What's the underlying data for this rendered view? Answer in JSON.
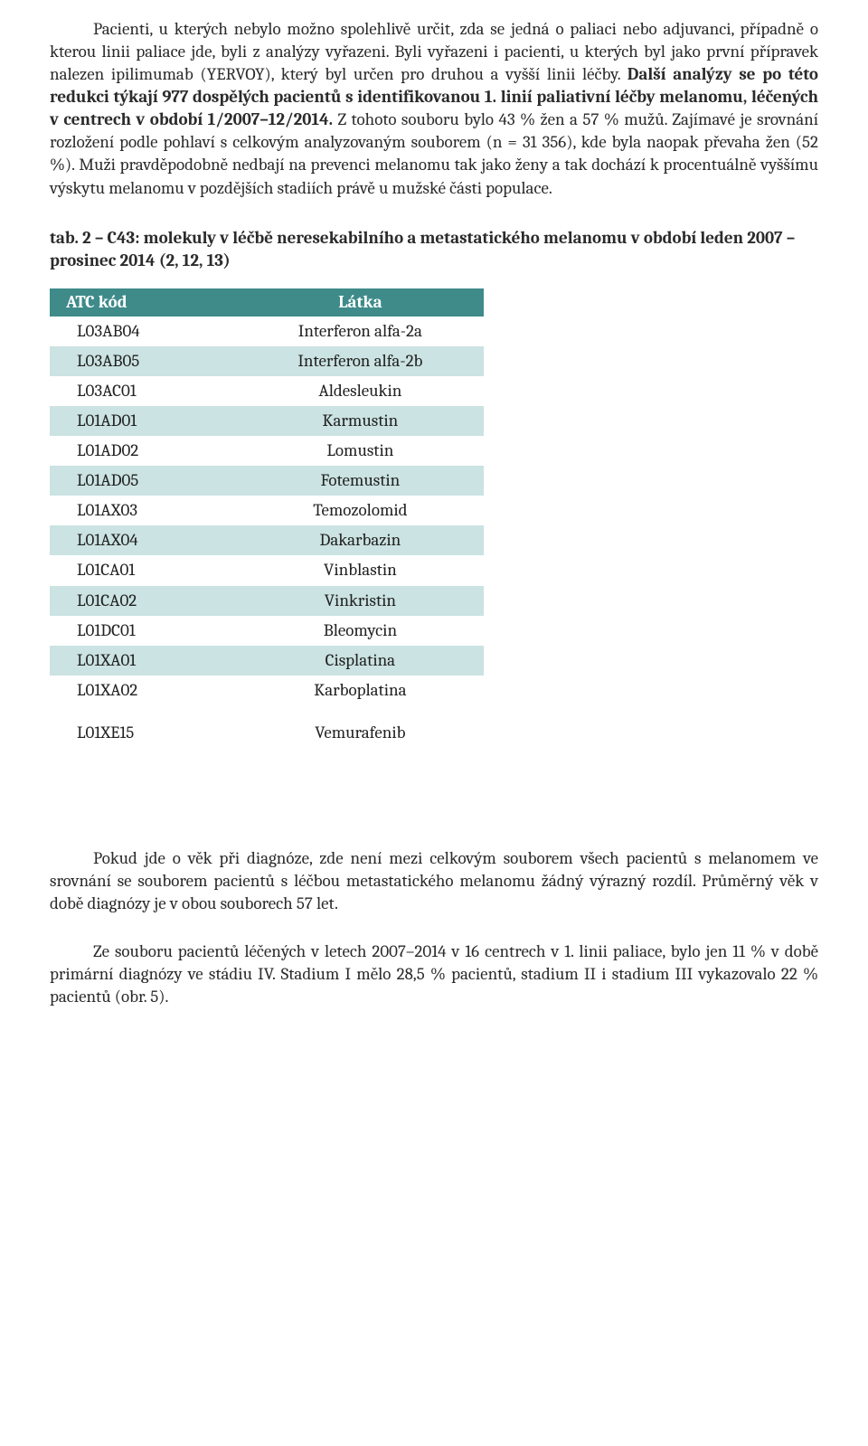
{
  "paragraph1_runs": [
    {
      "text": "Pacienti, u kterých nebylo možno spolehlivě určit, zda se jedná o paliaci nebo adjuvanci, případně o kterou linii paliace jde, byli z analýzy vyřazeni. Byli vyřazeni i pacienti, u kterých byl jako první přípravek nalezen ipilimumab (YERVOY), který byl určen pro druhou a vyšší linii léčby. ",
      "bold": false
    },
    {
      "text": "Další analýzy se po této redukci týkají 977 dospělých pacientů s identifikovanou 1. linií paliativní léčby melanomu, léčených v centrech v období 1/2007–12/2014.",
      "bold": true
    },
    {
      "text": " Z tohoto souboru bylo 43 % žen a 57 % mužů. Zajímavé je srovnání rozložení podle pohlaví s celkovým analyzovaným souborem (n = 31 356), kde byla naopak převaha žen (52 %). Muži pravděpodobně nedbají na prevenci melanomu tak jako ženy a tak dochází k procentuálně vyššímu výskytu melanomu v pozdějších stadiích právě u mužské části populace.",
      "bold": false
    }
  ],
  "table_caption": " tab. 2 – C43: molekuly v léčbě neresekabilního a metastatického melanomu v období leden 2007 – prosinec 2014 (2, 12, 13)",
  "table": {
    "header_code": "ATC kód",
    "header_latka": "Látka",
    "colors": {
      "header_bg": "#3e8b8a",
      "header_fg": "#ffffff",
      "band_bg": "#cbe3e2",
      "plain_bg": "#ffffff"
    },
    "rows": [
      {
        "code": "L03AB04",
        "latka": "Interferon alfa-2a",
        "band": false
      },
      {
        "code": "L03AB05",
        "latka": "Interferon alfa-2b",
        "band": true
      },
      {
        "code": "L03AC01",
        "latka": "Aldesleukin",
        "band": false
      },
      {
        "code": "L01AD01",
        "latka": "Karmustin",
        "band": true
      },
      {
        "code": "L01AD02",
        "latka": "Lomustin",
        "band": false
      },
      {
        "code": "L01AD05",
        "latka": "Fotemustin",
        "band": true
      },
      {
        "code": "L01AX03",
        "latka": "Temozolomid",
        "band": false
      },
      {
        "code": "L01AX04",
        "latka": "Dakarbazin",
        "band": true
      },
      {
        "code": "L01CA01",
        "latka": "Vinblastin",
        "band": false
      },
      {
        "code": "L01CA02",
        "latka": "Vinkristin",
        "band": true
      },
      {
        "code": "L01DC01",
        "latka": "Bleomycin",
        "band": false
      },
      {
        "code": "L01XA01",
        "latka": "Cisplatina",
        "band": true
      },
      {
        "code": "L01XA02",
        "latka": "Karboplatina",
        "band": false
      }
    ],
    "final_row": {
      "code": "L01XE15",
      "latka": "Vemurafenib",
      "band": false
    }
  },
  "paragraph2": "Pokud jde o věk při diagnóze, zde není mezi celkovým souborem všech pacientů s melanomem ve srovnání se souborem pacientů s léčbou metastatického melanomu žádný výrazný rozdíl. Průměrný věk v době diagnózy je v obou souborech 57 let.",
  "paragraph3": "Ze souboru pacientů léčených v letech 2007–2014 v 16 centrech v 1. linii paliace, bylo jen 11 % v době primární diagnózy ve stádiu IV. Stadium I mělo 28,5 % pacientů, stadium II i stadium III vykazovalo 22 % pacientů (obr. 5)."
}
